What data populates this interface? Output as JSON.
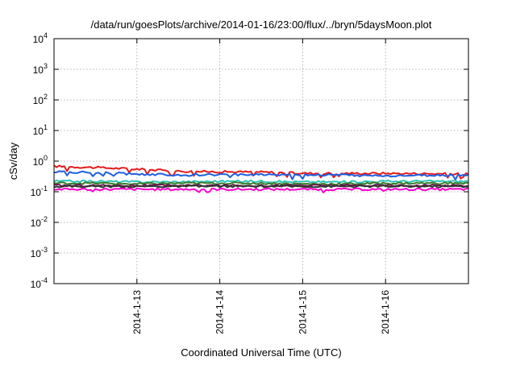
{
  "chart_data": {
    "type": "line",
    "title": "/data/run/goesPlots/archive/2014-01-16/23:00/flux/../bryn/5daysMoon.plot",
    "xlabel": "Coordinated Universal Time (UTC)",
    "ylabel": "cSv/day",
    "y_scale": "log",
    "ylim": [
      0.0001,
      10000
    ],
    "y_ticks": [
      {
        "base": "10",
        "exp": "-4",
        "value": 0.0001
      },
      {
        "base": "10",
        "exp": "-3",
        "value": 0.001
      },
      {
        "base": "10",
        "exp": "-2",
        "value": 0.01
      },
      {
        "base": "10",
        "exp": "-1",
        "value": 0.1
      },
      {
        "base": "10",
        "exp": "0",
        "value": 1
      },
      {
        "base": "10",
        "exp": "1",
        "value": 10
      },
      {
        "base": "10",
        "exp": "2",
        "value": 100
      },
      {
        "base": "10",
        "exp": "3",
        "value": 1000
      },
      {
        "base": "10",
        "exp": "4",
        "value": 10000
      }
    ],
    "xlim": [
      "2014-01-12T00:00",
      "2014-01-17T00:00"
    ],
    "x_ticks": [
      "2014-1-13",
      "2014-1-14",
      "2014-1-15",
      "2014-1-16"
    ],
    "grid": true,
    "series": [
      {
        "color": "#e41a1c",
        "x": [
          "2014-01-12T00:00",
          "2014-01-12T12:00",
          "2014-01-13T00:00",
          "2014-01-13T12:00",
          "2014-01-14T00:00",
          "2014-01-14T12:00",
          "2014-01-15T00:00",
          "2014-01-15T12:00",
          "2014-01-16T00:00",
          "2014-01-16T12:00",
          "2014-01-17T00:00"
        ],
        "y": [
          0.68,
          0.62,
          0.55,
          0.47,
          0.45,
          0.44,
          0.4,
          0.4,
          0.4,
          0.39,
          0.38
        ]
      },
      {
        "color": "#1f5fe0",
        "x": [
          "2014-01-12T00:00",
          "2014-01-12T12:00",
          "2014-01-13T00:00",
          "2014-01-13T12:00",
          "2014-01-14T00:00",
          "2014-01-14T12:00",
          "2014-01-15T00:00",
          "2014-01-15T12:00",
          "2014-01-16T00:00",
          "2014-01-16T12:00",
          "2014-01-17T00:00"
        ],
        "y": [
          0.45,
          0.42,
          0.38,
          0.35,
          0.36,
          0.37,
          0.36,
          0.35,
          0.33,
          0.34,
          0.35
        ]
      },
      {
        "color": "#2ec4b6",
        "x": [
          "2014-01-12T00:00",
          "2014-01-12T12:00",
          "2014-01-13T00:00",
          "2014-01-13T12:00",
          "2014-01-14T00:00",
          "2014-01-14T12:00",
          "2014-01-15T00:00",
          "2014-01-15T12:00",
          "2014-01-16T00:00",
          "2014-01-16T12:00",
          "2014-01-17T00:00"
        ],
        "y": [
          0.22,
          0.22,
          0.21,
          0.21,
          0.22,
          0.22,
          0.21,
          0.21,
          0.22,
          0.22,
          0.22
        ]
      },
      {
        "color": "#3a7d2c",
        "x": [
          "2014-01-12T00:00",
          "2014-01-12T12:00",
          "2014-01-13T00:00",
          "2014-01-13T12:00",
          "2014-01-14T00:00",
          "2014-01-14T12:00",
          "2014-01-15T00:00",
          "2014-01-15T12:00",
          "2014-01-16T00:00",
          "2014-01-16T12:00",
          "2014-01-17T00:00"
        ],
        "y": [
          0.19,
          0.19,
          0.18,
          0.19,
          0.19,
          0.19,
          0.18,
          0.18,
          0.19,
          0.19,
          0.19
        ]
      },
      {
        "color": "#6a1b4d",
        "x": [
          "2014-01-12T00:00",
          "2014-01-12T12:00",
          "2014-01-13T00:00",
          "2014-01-13T12:00",
          "2014-01-14T00:00",
          "2014-01-14T12:00",
          "2014-01-15T00:00",
          "2014-01-15T12:00",
          "2014-01-16T00:00",
          "2014-01-16T12:00",
          "2014-01-17T00:00"
        ],
        "y": [
          0.16,
          0.16,
          0.16,
          0.16,
          0.16,
          0.16,
          0.16,
          0.16,
          0.16,
          0.16,
          0.16
        ]
      },
      {
        "color": "#333333",
        "x": [
          "2014-01-12T00:00",
          "2014-01-12T12:00",
          "2014-01-13T00:00",
          "2014-01-13T12:00",
          "2014-01-14T00:00",
          "2014-01-14T12:00",
          "2014-01-15T00:00",
          "2014-01-15T12:00",
          "2014-01-16T00:00",
          "2014-01-16T12:00",
          "2014-01-17T00:00"
        ],
        "y": [
          0.15,
          0.15,
          0.15,
          0.15,
          0.15,
          0.15,
          0.15,
          0.15,
          0.15,
          0.15,
          0.15
        ]
      },
      {
        "color": "#ff00cc",
        "x": [
          "2014-01-12T00:00",
          "2014-01-12T12:00",
          "2014-01-13T00:00",
          "2014-01-13T12:00",
          "2014-01-14T00:00",
          "2014-01-14T12:00",
          "2014-01-15T00:00",
          "2014-01-15T12:00",
          "2014-01-16T00:00",
          "2014-01-16T12:00",
          "2014-01-17T00:00"
        ],
        "y": [
          0.12,
          0.12,
          0.12,
          0.12,
          0.12,
          0.12,
          0.12,
          0.12,
          0.12,
          0.12,
          0.12
        ]
      }
    ]
  }
}
